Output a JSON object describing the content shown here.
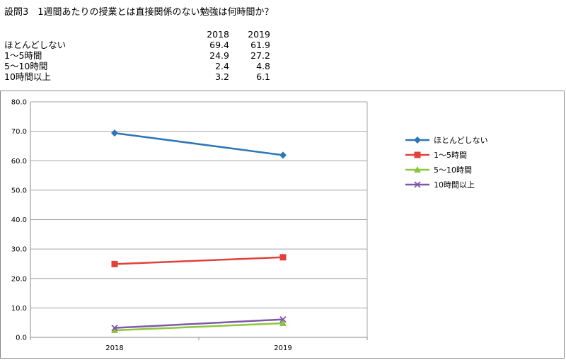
{
  "title": "設問3　1週間あたりの授業とは直接関係のない勉強は何時間か？",
  "table": {
    "headers": [
      "2018",
      "2019"
    ],
    "rows": [
      {
        "label": "ほとんどしない",
        "values": [
          "69.4",
          "61.9"
        ]
      },
      {
        "label": "1～5時間",
        "values": [
          "24.9",
          "27.2"
        ]
      },
      {
        "label": "5～10時間",
        "values": [
          "2.4",
          "4.8"
        ]
      },
      {
        "label": "10時間以上",
        "values": [
          "3.2",
          "6.1"
        ]
      }
    ]
  },
  "chart_data": {
    "type": "line",
    "title": "",
    "xlabel": "",
    "ylabel": "",
    "categories": [
      "2018",
      "2019"
    ],
    "ylim": [
      0,
      80
    ],
    "yticks": [
      "0.0",
      "10.0",
      "20.0",
      "30.0",
      "40.0",
      "50.0",
      "60.0",
      "70.0",
      "80.0"
    ],
    "grid": true,
    "legend": "right",
    "series": [
      {
        "name": "ほとんどしない",
        "values": [
          69.4,
          61.9
        ],
        "color": "#2E75B6",
        "marker": "diamond"
      },
      {
        "name": "1～5時間",
        "values": [
          24.9,
          27.2
        ],
        "color": "#E0413A",
        "marker": "square"
      },
      {
        "name": "5～10時間",
        "values": [
          2.4,
          4.8
        ],
        "color": "#8CC63F",
        "marker": "triangle"
      },
      {
        "name": "10時間以上",
        "values": [
          3.2,
          6.1
        ],
        "color": "#7E57A6",
        "marker": "x"
      }
    ]
  }
}
